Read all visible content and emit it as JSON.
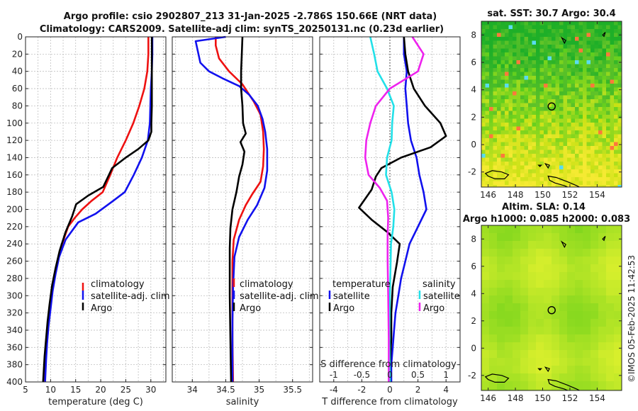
{
  "header": {
    "title_line1": "Argo profile: csio 2902807_213 31-Jan-2025 -2.786S 150.66E (NRT data)",
    "title_line2": "Climatology: CARS2009. Satellite-adj clim: synTS_20250131.nc (0.23d earlier)"
  },
  "colors": {
    "climatology": "#ee1111",
    "satellite": "#1111ee",
    "argo": "#000000",
    "sat_salinity": "#22e0e8",
    "argo_salinity": "#ee22ee"
  },
  "chart_data": [
    {
      "type": "line",
      "name": "temperature-profile",
      "xlabel": "temperature (deg C)",
      "xlim": [
        5,
        33
      ],
      "ylim": [
        400,
        0
      ],
      "xticks": [
        "5",
        "10",
        "15",
        "20",
        "25",
        "30"
      ],
      "yticks": [
        "0",
        "20",
        "40",
        "60",
        "80",
        "100",
        "120",
        "140",
        "160",
        "180",
        "200",
        "220",
        "240",
        "260",
        "280",
        "300",
        "320",
        "340",
        "360",
        "380",
        "400"
      ],
      "legend": [
        "climatology",
        "satellite-adj. clim",
        "Argo"
      ],
      "series": [
        {
          "name": "climatology",
          "color": "#ee1111",
          "points": [
            [
              29.5,
              0
            ],
            [
              29.5,
              20
            ],
            [
              29.3,
              40
            ],
            [
              28.7,
              60
            ],
            [
              27.7,
              80
            ],
            [
              26.5,
              100
            ],
            [
              25.0,
              120
            ],
            [
              23.3,
              140
            ],
            [
              21.9,
              160
            ],
            [
              20.4,
              180
            ],
            [
              18.2,
              190
            ],
            [
              16.3,
              200
            ],
            [
              14.8,
              210
            ],
            [
              13.5,
              220
            ],
            [
              12.3,
              240
            ],
            [
              11.4,
              260
            ],
            [
              10.7,
              280
            ],
            [
              10.2,
              300
            ],
            [
              9.8,
              320
            ],
            [
              9.5,
              340
            ],
            [
              9.2,
              360
            ],
            [
              9.0,
              380
            ],
            [
              8.8,
              400
            ]
          ]
        },
        {
          "name": "satellite-adj. clim",
          "color": "#1111ee",
          "points": [
            [
              30.3,
              0
            ],
            [
              30.3,
              20
            ],
            [
              30.2,
              40
            ],
            [
              30.0,
              60
            ],
            [
              29.9,
              80
            ],
            [
              29.8,
              100
            ],
            [
              29.4,
              120
            ],
            [
              28.2,
              140
            ],
            [
              26.6,
              160
            ],
            [
              24.8,
              180
            ],
            [
              22.5,
              190
            ],
            [
              19.0,
              205
            ],
            [
              15.5,
              215
            ],
            [
              13.0,
              235
            ],
            [
              11.7,
              255
            ],
            [
              11.0,
              275
            ],
            [
              10.4,
              295
            ],
            [
              10.0,
              315
            ],
            [
              9.6,
              335
            ],
            [
              9.3,
              355
            ],
            [
              9.1,
              375
            ],
            [
              8.9,
              400
            ]
          ]
        },
        {
          "name": "Argo",
          "color": "#000000",
          "points": [
            [
              30.2,
              0
            ],
            [
              30.2,
              20
            ],
            [
              30.2,
              40
            ],
            [
              30.2,
              60
            ],
            [
              30.2,
              80
            ],
            [
              30.1,
              100
            ],
            [
              30.1,
              110
            ],
            [
              29.5,
              120
            ],
            [
              27.5,
              130
            ],
            [
              25.0,
              140
            ],
            [
              22.3,
              152
            ],
            [
              20.5,
              174
            ],
            [
              17.5,
              184
            ],
            [
              15.1,
              194
            ],
            [
              14.3,
              208
            ],
            [
              13.0,
              226
            ],
            [
              11.8,
              248
            ],
            [
              11.0,
              268
            ],
            [
              10.3,
              288
            ],
            [
              9.8,
              310
            ],
            [
              9.4,
              330
            ],
            [
              9.1,
              350
            ],
            [
              8.8,
              370
            ],
            [
              8.6,
              390
            ],
            [
              8.5,
              400
            ]
          ]
        }
      ]
    },
    {
      "type": "line",
      "name": "salinity-profile",
      "xlabel": "salinity",
      "xlim": [
        33.7,
        35.8
      ],
      "ylim": [
        400,
        0
      ],
      "xticks": [
        "34",
        "34.5",
        "35",
        "35.5"
      ],
      "legend": [
        "climatology",
        "satellite-adj. clim",
        "Argo"
      ],
      "series": [
        {
          "name": "climatology",
          "color": "#ee1111",
          "points": [
            [
              34.35,
              0
            ],
            [
              34.35,
              10
            ],
            [
              34.4,
              25
            ],
            [
              34.55,
              40
            ],
            [
              34.75,
              55
            ],
            [
              34.92,
              75
            ],
            [
              35.02,
              90
            ],
            [
              35.06,
              110
            ],
            [
              35.07,
              130
            ],
            [
              35.06,
              150
            ],
            [
              35.02,
              168
            ],
            [
              34.9,
              182
            ],
            [
              34.8,
              195
            ],
            [
              34.7,
              212
            ],
            [
              34.62,
              235
            ],
            [
              34.6,
              260
            ],
            [
              34.6,
              300
            ],
            [
              34.6,
              350
            ],
            [
              34.61,
              400
            ]
          ]
        },
        {
          "name": "satellite-adj. clim",
          "color": "#1111ee",
          "points": [
            [
              34.5,
              0
            ],
            [
              34.05,
              5
            ],
            [
              34.12,
              30
            ],
            [
              34.25,
              40
            ],
            [
              34.45,
              48
            ],
            [
              34.7,
              57
            ],
            [
              34.85,
              67
            ],
            [
              34.98,
              80
            ],
            [
              35.05,
              95
            ],
            [
              35.09,
              110
            ],
            [
              35.12,
              130
            ],
            [
              35.12,
              155
            ],
            [
              35.08,
              175
            ],
            [
              34.97,
              195
            ],
            [
              34.83,
              212
            ],
            [
              34.7,
              232
            ],
            [
              34.63,
              255
            ],
            [
              34.61,
              290
            ],
            [
              34.6,
              330
            ],
            [
              34.6,
              400
            ]
          ]
        },
        {
          "name": "Argo",
          "color": "#000000",
          "points": [
            [
              34.75,
              0
            ],
            [
              34.74,
              20
            ],
            [
              34.73,
              40
            ],
            [
              34.73,
              60
            ],
            [
              34.75,
              80
            ],
            [
              34.76,
              100
            ],
            [
              34.8,
              112
            ],
            [
              34.72,
              122
            ],
            [
              34.78,
              133
            ],
            [
              34.75,
              148
            ],
            [
              34.7,
              162
            ],
            [
              34.66,
              180
            ],
            [
              34.6,
              200
            ],
            [
              34.57,
              222
            ],
            [
              34.56,
              245
            ],
            [
              34.56,
              300
            ],
            [
              34.57,
              350
            ],
            [
              34.58,
              400
            ]
          ]
        }
      ]
    },
    {
      "type": "line",
      "name": "difference-profile",
      "xlabel": "T difference from climatology",
      "xlim": [
        -5,
        5
      ],
      "ylim": [
        400,
        0
      ],
      "xticks": [
        "-4",
        "-2",
        "0",
        "2",
        "4"
      ],
      "top_xlabel": "S difference from climatology",
      "top_xlim": [
        -1.25,
        1.25
      ],
      "top_xticks": [
        "-1",
        "-0.5",
        "0",
        "0.5",
        "1"
      ],
      "legend_temperature_title": "temperature",
      "legend_salinity_title": "salinity",
      "legend_temperature": [
        "satellite",
        "Argo"
      ],
      "legend_salinity": [
        "satellite",
        "Argo"
      ],
      "series": [
        {
          "name": "T satellite",
          "color": "#1111ee",
          "axis": "T",
          "points": [
            [
              1.0,
              0
            ],
            [
              1.0,
              20
            ],
            [
              1.2,
              40
            ],
            [
              1.1,
              60
            ],
            [
              1.2,
              80
            ],
            [
              1.3,
              100
            ],
            [
              1.5,
              120
            ],
            [
              1.9,
              140
            ],
            [
              2.1,
              160
            ],
            [
              2.4,
              180
            ],
            [
              2.6,
              200
            ],
            [
              2.0,
              220
            ],
            [
              1.4,
              240
            ],
            [
              1.1,
              260
            ],
            [
              0.8,
              280
            ],
            [
              0.6,
              300
            ],
            [
              0.4,
              320
            ],
            [
              0.3,
              340
            ],
            [
              0.2,
              360
            ],
            [
              0.1,
              380
            ],
            [
              0.1,
              400
            ]
          ]
        },
        {
          "name": "T Argo",
          "color": "#000000",
          "axis": "T",
          "points": [
            [
              1.0,
              0
            ],
            [
              1.1,
              20
            ],
            [
              1.3,
              40
            ],
            [
              1.7,
              60
            ],
            [
              2.5,
              80
            ],
            [
              3.6,
              100
            ],
            [
              4.0,
              115
            ],
            [
              2.9,
              128
            ],
            [
              0.8,
              140
            ],
            [
              -0.6,
              152
            ],
            [
              -1.0,
              162
            ],
            [
              -1.3,
              177
            ],
            [
              -2.2,
              198
            ],
            [
              -1.3,
              212
            ],
            [
              -0.2,
              226
            ],
            [
              0.7,
              240
            ],
            [
              0.5,
              262
            ],
            [
              0.2,
              290
            ],
            [
              0.1,
              320
            ],
            [
              0.1,
              350
            ],
            [
              0.0,
              380
            ],
            [
              0.0,
              400
            ]
          ]
        },
        {
          "name": "S satellite",
          "color": "#22e0e8",
          "axis": "S",
          "points": [
            [
              -0.35,
              0
            ],
            [
              -0.28,
              20
            ],
            [
              -0.22,
              40
            ],
            [
              -0.05,
              60
            ],
            [
              0.07,
              80
            ],
            [
              0.04,
              100
            ],
            [
              0.03,
              120
            ],
            [
              -0.05,
              140
            ],
            [
              -0.07,
              160
            ],
            [
              0.03,
              180
            ],
            [
              0.08,
              200
            ],
            [
              0.06,
              220
            ],
            [
              0.02,
              240
            ],
            [
              0.01,
              270
            ],
            [
              0.0,
              300
            ],
            [
              -0.01,
              340
            ],
            [
              0.0,
              400
            ]
          ]
        },
        {
          "name": "S Argo",
          "color": "#ee22ee",
          "axis": "S",
          "points": [
            [
              0.4,
              0
            ],
            [
              0.6,
              20
            ],
            [
              0.5,
              40
            ],
            [
              0.0,
              60
            ],
            [
              -0.25,
              80
            ],
            [
              -0.35,
              100
            ],
            [
              -0.42,
              120
            ],
            [
              -0.44,
              140
            ],
            [
              -0.38,
              160
            ],
            [
              -0.18,
              175
            ],
            [
              -0.05,
              190
            ],
            [
              -0.03,
              210
            ],
            [
              -0.04,
              230
            ],
            [
              -0.04,
              260
            ],
            [
              -0.03,
              300
            ],
            [
              -0.02,
              350
            ],
            [
              -0.02,
              400
            ]
          ]
        }
      ]
    },
    {
      "type": "heatmap",
      "name": "sst-map",
      "title": "sat. SST: 30.7 Argo: 30.4",
      "xlim": [
        145.5,
        155.8
      ],
      "ylim": [
        -3.1,
        9.0
      ],
      "xticks": [
        "146",
        "148",
        "150",
        "152",
        "154"
      ],
      "yticks": [
        "-2",
        "0",
        "2",
        "4",
        "6",
        "8"
      ],
      "argo_marker": [
        150.66,
        2.786
      ]
    },
    {
      "type": "heatmap",
      "name": "sla-map",
      "title_line1": "Altim. SLA: 0.14",
      "title_line2": "Argo h1000: 0.085 h2000: 0.083",
      "xlim": [
        145.5,
        155.8
      ],
      "ylim": [
        -3.1,
        9.0
      ],
      "xticks": [
        "146",
        "148",
        "150",
        "152",
        "154"
      ],
      "yticks": [
        "-2",
        "0",
        "2",
        "4",
        "6",
        "8"
      ],
      "argo_marker": [
        150.66,
        2.786
      ]
    }
  ],
  "footer": {
    "stamp": "©IMOS 05-Feb-2025 11:42:53"
  }
}
